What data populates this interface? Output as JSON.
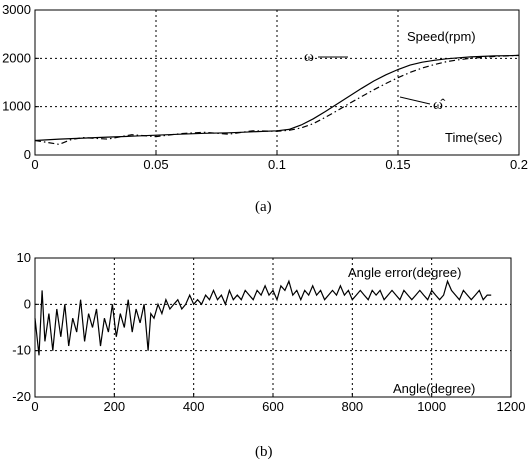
{
  "chart_data": [
    {
      "type": "line",
      "caption": "(a)",
      "xlabel": "Time(sec)",
      "ylabel": "Speed(rpm)",
      "xlim": [
        0,
        0.2
      ],
      "ylim": [
        0,
        3000
      ],
      "xticks": [
        "0",
        "0.05",
        "0.1",
        "0.15",
        "0.2"
      ],
      "yticks": [
        "0",
        "1000",
        "2000",
        "3000"
      ],
      "grid": true,
      "series": [
        {
          "name": "ω",
          "style": "solid",
          "x": [
            0,
            0.01,
            0.02,
            0.03,
            0.04,
            0.05,
            0.06,
            0.07,
            0.08,
            0.09,
            0.1,
            0.105,
            0.11,
            0.115,
            0.12,
            0.125,
            0.13,
            0.135,
            0.14,
            0.145,
            0.15,
            0.155,
            0.16,
            0.165,
            0.17,
            0.175,
            0.18,
            0.185,
            0.19,
            0.195,
            0.2
          ],
          "y": [
            300,
            330,
            350,
            370,
            390,
            410,
            430,
            450,
            460,
            480,
            500,
            530,
            620,
            750,
            900,
            1060,
            1220,
            1380,
            1530,
            1660,
            1770,
            1860,
            1920,
            1960,
            1990,
            2010,
            2030,
            2040,
            2050,
            2055,
            2060
          ]
        },
        {
          "name": "ω̂",
          "style": "dashdot",
          "x": [
            0,
            0.005,
            0.01,
            0.015,
            0.02,
            0.03,
            0.04,
            0.05,
            0.06,
            0.07,
            0.08,
            0.09,
            0.1,
            0.105,
            0.11,
            0.115,
            0.12,
            0.125,
            0.13,
            0.135,
            0.14,
            0.145,
            0.15,
            0.155,
            0.16,
            0.165,
            0.17,
            0.175,
            0.18,
            0.185,
            0.19,
            0.195,
            0.2
          ],
          "y": [
            300,
            260,
            220,
            320,
            360,
            330,
            420,
            380,
            440,
            470,
            430,
            500,
            490,
            510,
            560,
            650,
            780,
            920,
            1070,
            1210,
            1350,
            1480,
            1600,
            1710,
            1800,
            1870,
            1930,
            1970,
            2000,
            2020,
            2040,
            2050,
            2060
          ]
        }
      ],
      "annotations": [
        "ω",
        "ω̂"
      ]
    },
    {
      "type": "line",
      "caption": "(b)",
      "xlabel": "Angle(degree)",
      "ylabel": "Angle error(degree)",
      "xlim": [
        0,
        1200
      ],
      "ylim": [
        -20,
        10
      ],
      "xticks": [
        "0",
        "200",
        "400",
        "600",
        "800",
        "1000",
        "1200"
      ],
      "yticks": [
        "-20",
        "-10",
        "0",
        "10"
      ],
      "grid": true,
      "series": [
        {
          "style": "solid",
          "x": [
            0,
            10,
            18,
            25,
            35,
            45,
            55,
            65,
            75,
            85,
            95,
            105,
            115,
            125,
            135,
            145,
            155,
            165,
            175,
            185,
            195,
            205,
            215,
            225,
            235,
            245,
            255,
            265,
            275,
            285,
            292,
            300,
            310,
            320,
            330,
            340,
            350,
            360,
            370,
            380,
            390,
            400,
            410,
            420,
            430,
            440,
            450,
            460,
            470,
            480,
            490,
            500,
            510,
            520,
            530,
            540,
            550,
            560,
            570,
            580,
            590,
            600,
            610,
            620,
            630,
            640,
            650,
            660,
            670,
            680,
            690,
            700,
            710,
            720,
            730,
            740,
            750,
            760,
            770,
            780,
            790,
            800,
            810,
            820,
            830,
            840,
            850,
            860,
            870,
            880,
            890,
            900,
            910,
            920,
            930,
            940,
            950,
            960,
            970,
            980,
            990,
            1000,
            1010,
            1020,
            1030,
            1040,
            1050,
            1060,
            1070,
            1080,
            1090,
            1100,
            1110,
            1120,
            1130,
            1140,
            1150
          ],
          "y": [
            -3,
            -11,
            3,
            -8,
            -2,
            -10,
            -1,
            -7,
            0,
            -9,
            -3,
            -6,
            1,
            -8,
            -2,
            -5,
            -1,
            -9,
            -3,
            -6,
            0,
            -7,
            -2,
            -5,
            1,
            -6,
            -1,
            -4,
            0,
            -10,
            -2,
            -3,
            0,
            -2,
            1,
            -1,
            0,
            1,
            -1,
            0,
            2,
            0,
            1,
            0,
            2,
            1,
            3,
            1,
            2,
            0,
            3,
            1,
            2,
            1,
            3,
            2,
            1,
            3,
            2,
            4,
            2,
            3,
            1,
            4,
            3,
            5,
            2,
            3,
            1,
            3,
            2,
            4,
            2,
            3,
            1,
            2,
            3,
            2,
            4,
            2,
            3,
            1,
            2,
            3,
            2,
            1,
            3,
            2,
            3,
            1,
            2,
            3,
            2,
            1,
            3,
            2,
            1,
            2,
            3,
            2,
            1,
            3,
            2,
            1,
            2,
            5,
            3,
            2,
            1,
            3,
            2,
            1,
            2,
            3,
            1,
            2,
            2
          ]
        }
      ]
    }
  ]
}
